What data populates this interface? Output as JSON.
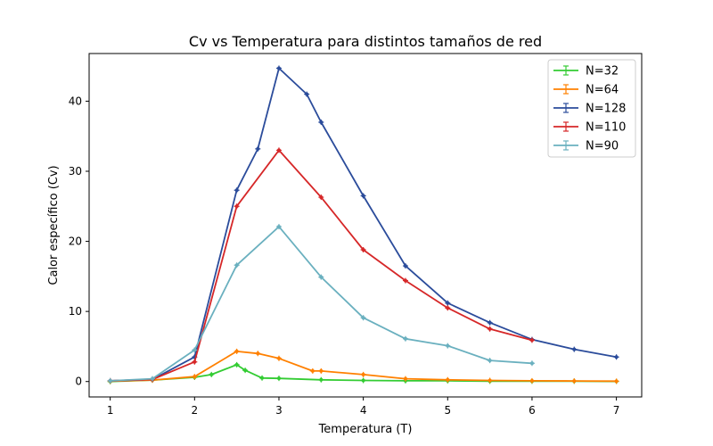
{
  "chart_data": {
    "type": "line",
    "title": "Cv vs Temperatura para distintos tamaños de red",
    "xlabel": "Temperatura (T)",
    "ylabel": "Calor específico (Cv)",
    "xlim": [
      0.75,
      7.3
    ],
    "ylim": [
      -2.2,
      46.8
    ],
    "xticks": [
      1,
      2,
      3,
      4,
      5,
      6,
      7
    ],
    "yticks": [
      0,
      10,
      20,
      30,
      40
    ],
    "grid": false,
    "legend_position": "top-right",
    "series": [
      {
        "name": "N=32",
        "color": "#33cc33",
        "x": [
          1.0,
          1.5,
          2.0,
          2.2,
          2.5,
          2.6,
          2.8,
          3.0,
          3.5,
          4.0,
          4.5,
          5.0,
          5.5,
          6.0,
          6.5,
          7.0
        ],
        "y": [
          0.0,
          0.2,
          0.6,
          1.0,
          2.4,
          1.6,
          0.5,
          0.45,
          0.25,
          0.15,
          0.1,
          0.1,
          0.05,
          0.05,
          0.05,
          0.02
        ]
      },
      {
        "name": "N=64",
        "color": "#ff8000",
        "x": [
          1.0,
          1.5,
          2.0,
          2.5,
          2.75,
          3.0,
          3.4,
          3.5,
          4.0,
          4.5,
          5.0,
          5.5,
          6.0,
          6.5,
          7.0
        ],
        "y": [
          0.05,
          0.2,
          0.7,
          4.3,
          4.0,
          3.3,
          1.5,
          1.5,
          1.0,
          0.4,
          0.25,
          0.15,
          0.1,
          0.08,
          0.05
        ]
      },
      {
        "name": "N=128",
        "color": "#2b4c9b",
        "x": [
          1.0,
          1.5,
          2.0,
          2.5,
          2.75,
          3.0,
          3.33,
          3.5,
          4.0,
          4.5,
          5.0,
          5.5,
          6.0,
          6.5,
          7.0
        ],
        "y": [
          0.1,
          0.3,
          3.5,
          27.3,
          33.2,
          44.7,
          41.0,
          37.0,
          26.5,
          16.5,
          11.2,
          8.4,
          6.0,
          4.6,
          3.5
        ]
      },
      {
        "name": "N=110",
        "color": "#d62728",
        "x": [
          1.0,
          1.5,
          2.0,
          2.5,
          3.0,
          3.5,
          4.0,
          4.5,
          5.0,
          5.5,
          6.0
        ],
        "y": [
          0.1,
          0.3,
          2.8,
          25.0,
          33.0,
          26.3,
          18.8,
          14.4,
          10.5,
          7.5,
          5.9
        ]
      },
      {
        "name": "N=90",
        "color": "#6ab0bf",
        "x": [
          1.0,
          1.5,
          2.0,
          2.5,
          3.0,
          3.5,
          4.0,
          4.5,
          5.0,
          5.5,
          6.0
        ],
        "y": [
          0.1,
          0.4,
          4.5,
          16.6,
          22.1,
          14.9,
          9.1,
          6.1,
          5.1,
          3.0,
          2.6
        ]
      }
    ]
  }
}
